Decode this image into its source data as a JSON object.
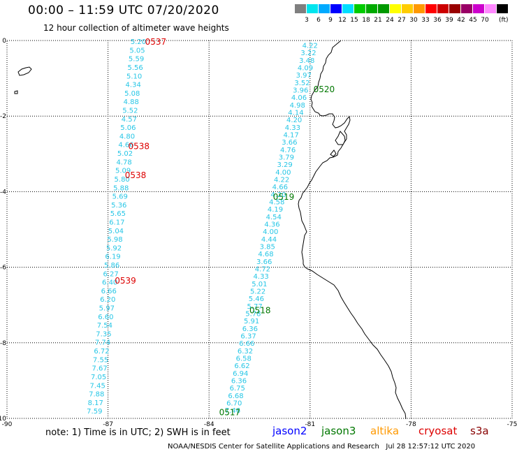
{
  "header": {
    "title": "00:00 – 11:59 UTC 07/20/2020",
    "subtitle": "12 hour collection of altimeter wave heights"
  },
  "colorbar": {
    "colors": [
      "#7f7f7f",
      "#00e5ee",
      "#00aaff",
      "#0000ff",
      "#00ddff",
      "#00cc00",
      "#00aa00",
      "#009900",
      "#ffff00",
      "#ffcc00",
      "#ff9900",
      "#ff0000",
      "#cc0000",
      "#990000",
      "#990066",
      "#cc00cc",
      "#ff88ff",
      "#000000"
    ],
    "labels": [
      "3",
      "6",
      "9",
      "12",
      "15",
      "18",
      "21",
      "24",
      "27",
      "30",
      "33",
      "36",
      "39",
      "42",
      "45",
      "70"
    ],
    "unit": "(ft)"
  },
  "axes": {
    "y_ticks": [
      "0",
      "-2",
      "-4",
      "-6",
      "-8",
      "-10"
    ],
    "x_ticks": [
      "-90",
      "-87",
      "-84",
      "-81",
      "-78",
      "-75"
    ]
  },
  "chart_data": {
    "type": "scatter",
    "xlim": [
      -90,
      -75
    ],
    "ylim": [
      -10,
      0
    ],
    "grid": true,
    "tracks": [
      {
        "start": [
          -86.1,
          -0.02
        ],
        "end": [
          -87.4,
          -9.8
        ],
        "values": [
          "5.20",
          "5.05",
          "5.59",
          "5.56",
          "5.10",
          "4.34",
          "5.08",
          "4.88",
          "5.52",
          "4.57",
          "5.06",
          "4.80",
          "4.66",
          "5.02",
          "4.78",
          "5.09",
          "5.80",
          "5.88",
          "5.69",
          "5.36",
          "5.65",
          "6.17",
          "5.04",
          "5.98",
          "5.92",
          "6.19",
          "5.86",
          "6.27",
          "6.40",
          "6.66",
          "6.20",
          "5.97",
          "6.60",
          "7.54",
          "7.35",
          "7.74",
          "6.72",
          "7.55",
          "7.67",
          "7.05",
          "7.45",
          "7.88",
          "8.17",
          "7.59"
        ]
      },
      {
        "start": [
          -81.0,
          -0.12
        ],
        "end": [
          -83.3,
          -9.78
        ],
        "values": [
          "4.22",
          "3.22",
          "3.48",
          "4.09",
          "3.97",
          "3.52",
          "3.96",
          "4.06",
          "4.98",
          "4.14",
          "4.20",
          "4.33",
          "4.17",
          "3.66",
          "4.76",
          "3.79",
          "3.29",
          "4.00",
          "4.22",
          "4.66",
          "4.20",
          "4.58",
          "4.19",
          "4.54",
          "4.36",
          "4.00",
          "4.44",
          "3.85",
          "4.68",
          "3.66",
          "4.72",
          "4.33",
          "5.01",
          "5.22",
          "5.46",
          "5.77",
          "5.78",
          "5.91",
          "6.36",
          "6.37",
          "6.66",
          "6.32",
          "6.58",
          "6.62",
          "6.94",
          "6.36",
          "6.75",
          "6.68",
          "6.70",
          "7.46"
        ]
      }
    ],
    "pass_labels": [
      {
        "text": "0537",
        "mission": "cryosat",
        "lon": -85.9,
        "lat": -0.02
      },
      {
        "text": "0538",
        "mission": "cryosat",
        "lon": -86.4,
        "lat": -2.78
      },
      {
        "text": "0538",
        "mission": "cryosat",
        "lon": -86.5,
        "lat": -3.55
      },
      {
        "text": "0539",
        "mission": "cryosat",
        "lon": -86.8,
        "lat": -6.34
      },
      {
        "text": "0520",
        "mission": "jason3",
        "lon": -80.9,
        "lat": -1.28
      },
      {
        "text": "0519",
        "mission": "jason3",
        "lon": -82.1,
        "lat": -4.12
      },
      {
        "text": "0518",
        "mission": "jason3",
        "lon": -82.8,
        "lat": -7.13
      },
      {
        "text": "0517",
        "mission": "jason3",
        "lon": -83.7,
        "lat": -9.82
      }
    ]
  },
  "footer": {
    "note": "note: 1) Time is in UTC; 2) SWH is in feet",
    "missions": [
      {
        "name": "jason2",
        "color": "#0000ff"
      },
      {
        "name": "jason3",
        "color": "#007700"
      },
      {
        "name": "altika",
        "color": "#ff9900"
      },
      {
        "name": "cryosat",
        "color": "#dd0000"
      },
      {
        "name": "s3a",
        "color": "#880000"
      }
    ],
    "credit": "NOAA/NESDIS Center for Satellite Applications and Research   Jul 28 12:57:12 UTC 2020"
  }
}
